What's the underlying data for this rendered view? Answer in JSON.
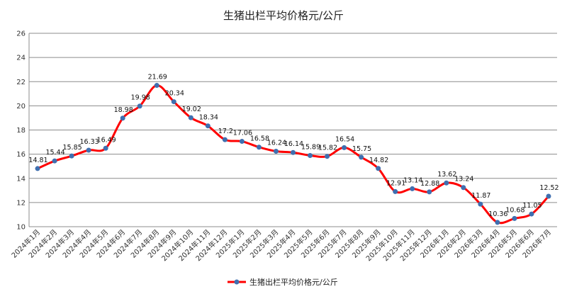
{
  "chart_data": {
    "type": "line",
    "title": "生猪出栏平均价格元/公斤",
    "xlabel": "",
    "ylabel": "",
    "ylim": [
      10,
      26
    ],
    "yticks": [
      10,
      12,
      14,
      16,
      18,
      20,
      22,
      24,
      26
    ],
    "grid": true,
    "legend_position": "bottom",
    "categories": [
      "2024年1月",
      "2024年2月",
      "2024年3月",
      "2024年4月",
      "2024年5月",
      "2024年6月",
      "2024年7月",
      "2024年8月",
      "2024年9月",
      "2024年10月",
      "2024年11月",
      "2024年12月",
      "2025年1月",
      "2025年2月",
      "2025年3月",
      "2025年4月",
      "2025年5月",
      "2025年6月",
      "2025年7月",
      "2025年8月",
      "2025年9月",
      "2025年10月",
      "2025年11月",
      "2025年12月",
      "2026年1月",
      "2026年2月",
      "2026年3月",
      "2026年4月",
      "2026年5月",
      "2026年6月",
      "2026年7月"
    ],
    "series": [
      {
        "name": "生猪出栏平均价格元/公斤",
        "color": "#ff0000",
        "marker_color": "#3f6fb0",
        "values": [
          14.81,
          15.44,
          15.85,
          16.33,
          16.49,
          18.98,
          19.98,
          21.69,
          20.34,
          19.02,
          18.34,
          17.2,
          17.06,
          16.58,
          16.24,
          16.14,
          15.89,
          15.82,
          16.54,
          15.75,
          14.82,
          12.91,
          13.14,
          12.88,
          13.62,
          13.24,
          11.87,
          10.36,
          10.68,
          11.05,
          12.52
        ]
      }
    ]
  }
}
